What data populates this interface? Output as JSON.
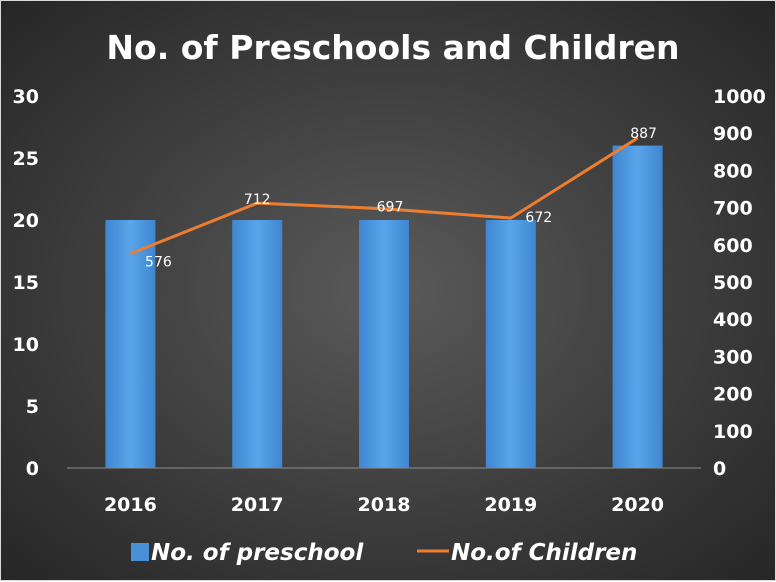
{
  "chart_data": {
    "type": "bar+line",
    "title": "No. of Preschools and Children",
    "categories": [
      "2016",
      "2017",
      "2018",
      "2019",
      "2020"
    ],
    "series": [
      {
        "name": "No. of preschool",
        "type": "bar",
        "axis": "left",
        "values": [
          20,
          20,
          20,
          20,
          26
        ],
        "color": "#4a90d9"
      },
      {
        "name": "No.of Children",
        "type": "line",
        "axis": "right",
        "values": [
          576,
          712,
          697,
          672,
          887
        ],
        "data_labels": [
          "576",
          "712",
          "697",
          "672",
          "887"
        ],
        "color": "#ed7d31"
      }
    ],
    "y_left": {
      "min": 0,
      "max": 30,
      "ticks": [
        "0",
        "5",
        "10",
        "15",
        "20",
        "25",
        "30"
      ]
    },
    "y_right": {
      "min": 0,
      "max": 1000,
      "ticks": [
        "0",
        "100",
        "200",
        "300",
        "400",
        "500",
        "600",
        "700",
        "800",
        "900",
        "1000"
      ]
    },
    "legend": {
      "placement": "bottom"
    },
    "grid": false,
    "background": "#3a3a3a"
  }
}
